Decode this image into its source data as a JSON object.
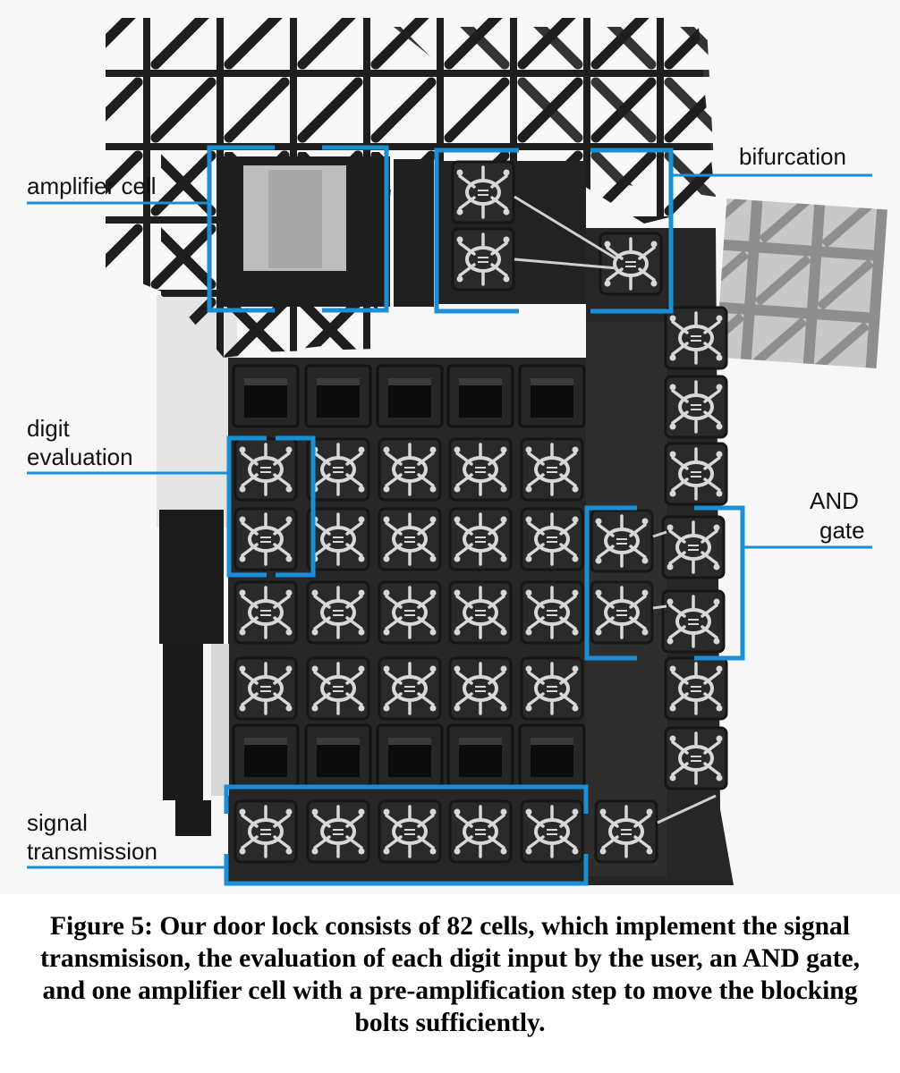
{
  "labels": {
    "amplifier": "amplifier cell",
    "bifurcation": "bifurcation",
    "digit_line1": "digit",
    "digit_line2": "evaluation",
    "and_line1": "AND",
    "and_line2": "gate",
    "signal_line1": "signal",
    "signal_line2": "transmission"
  },
  "caption": "Figure 5: Our door lock consists of 82 cells, which implement the signal transmisison, the evaluation of each digit input by the user, an AND gate, and one amplifier cell with a pre-amplification step to move the blocking bolts sufficiently.",
  "colors": {
    "highlight": "#1a8fd6",
    "cell_dark": "#252525",
    "print_white": "#dcdcdc",
    "background": "#f7f7f7"
  }
}
